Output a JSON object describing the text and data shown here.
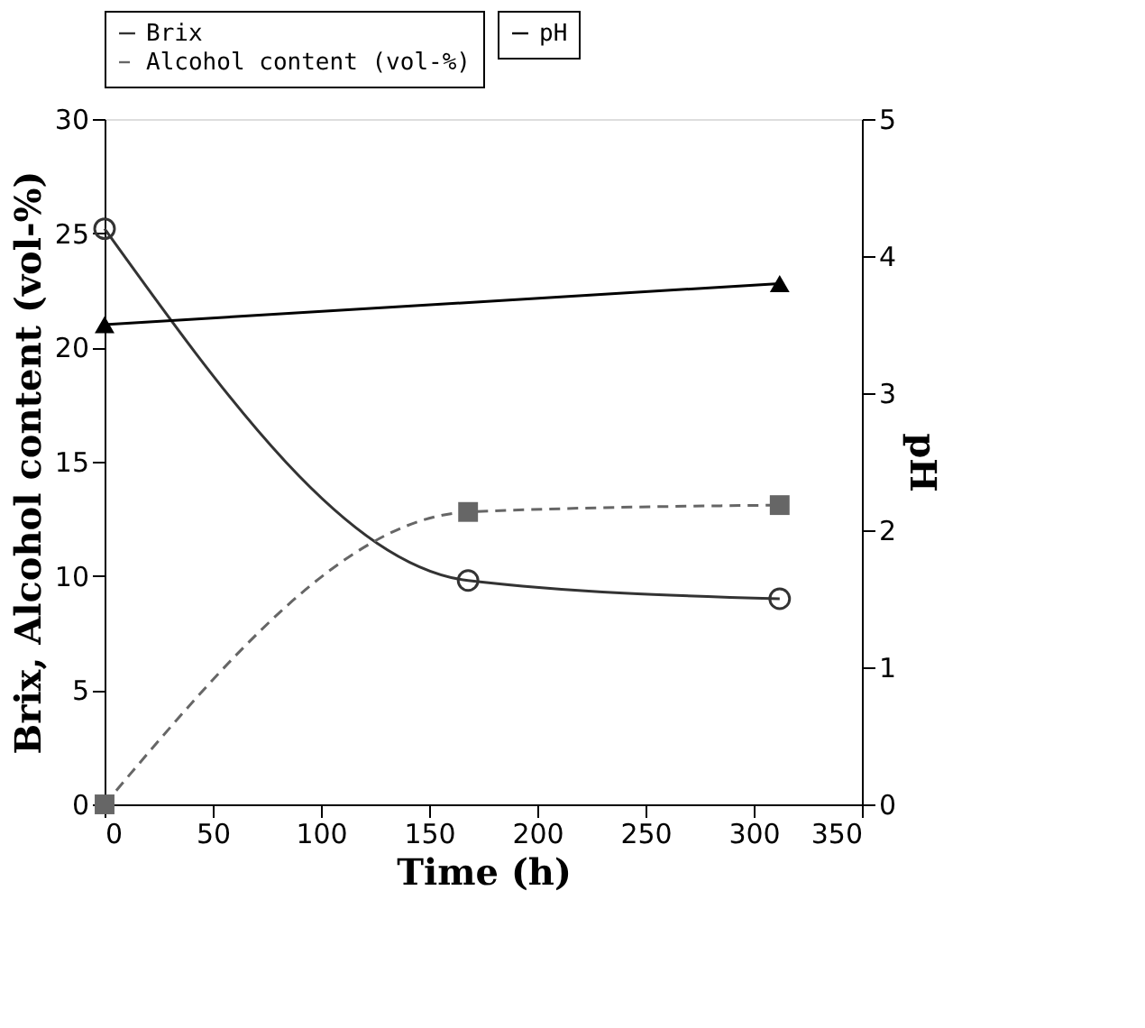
{
  "chart_data": {
    "type": "line",
    "xlabel": "Time (h)",
    "ylabel": "Brix, Alcohol content (vol-%)",
    "y2label": "pH",
    "x": [
      0,
      168,
      312
    ],
    "series": [
      {
        "name": "Brix",
        "color": "#333333",
        "values": [
          25.2,
          9.8,
          9.0
        ],
        "marker": "circle",
        "line_style": "solid"
      },
      {
        "name": "Alcohol content (vol-%)",
        "color": "#666666",
        "values": [
          0,
          12.8,
          13.1
        ],
        "marker": "square",
        "line_style": "dashed"
      },
      {
        "name": "pH",
        "color": "#000000",
        "values": [
          3.5,
          3.8
        ],
        "x": [
          0,
          312
        ],
        "axis": "y2",
        "marker": "triangle",
        "line_style": "solid"
      }
    ],
    "xlim": [
      0,
      350
    ],
    "xticks": [
      0,
      50,
      100,
      150,
      200,
      250,
      300,
      350
    ],
    "ylim": [
      0,
      30
    ],
    "yticks": [
      0,
      5,
      10,
      15,
      20,
      25,
      30
    ],
    "y2lim": [
      0,
      5
    ],
    "y2ticks": [
      0,
      1,
      2,
      3,
      4,
      5
    ],
    "grid": false,
    "legend": "top"
  }
}
